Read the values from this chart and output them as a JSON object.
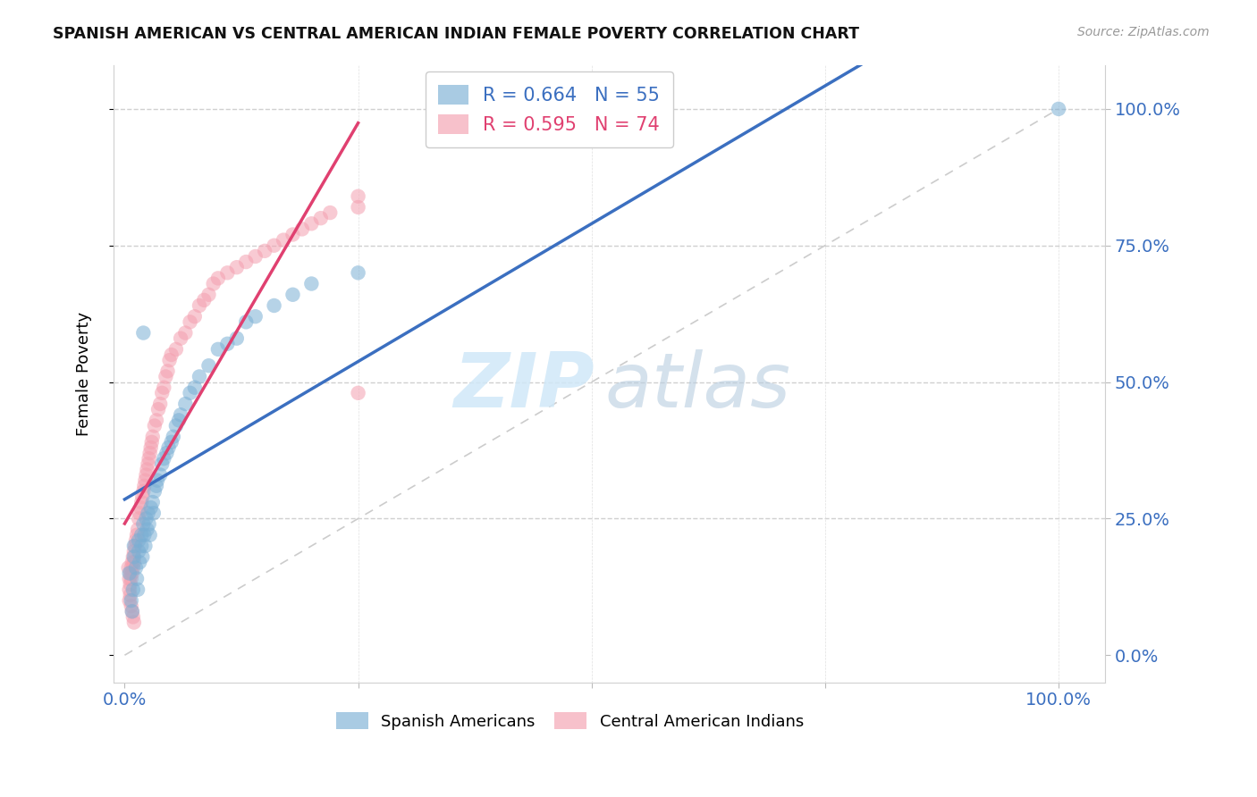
{
  "title": "SPANISH AMERICAN VS CENTRAL AMERICAN INDIAN FEMALE POVERTY CORRELATION CHART",
  "source": "Source: ZipAtlas.com",
  "ylabel": "Female Poverty",
  "ytick_labels": [
    "100.0%",
    "75.0%",
    "50.0%",
    "25.0%",
    "0.0%"
  ],
  "ytick_values": [
    1.0,
    0.75,
    0.5,
    0.25,
    0.0
  ],
  "xtick_labels": [
    "0.0%",
    "100.0%"
  ],
  "xtick_values": [
    0.0,
    1.0
  ],
  "legend_r_labels": [
    "R = 0.664   N = 55",
    "R = 0.595   N = 74"
  ],
  "legend_bottom_labels": [
    "Spanish Americans",
    "Central American Indians"
  ],
  "blue_color": "#7BAFD4",
  "pink_color": "#F4A0B0",
  "blue_line_color": "#3B6FC0",
  "pink_line_color": "#E04070",
  "diagonal_color": "#CCCCCC",
  "label_color": "#3B6FC0",
  "background_color": "#FFFFFF",
  "blue_scatter_x": [
    0.005,
    0.007,
    0.008,
    0.009,
    0.01,
    0.01,
    0.012,
    0.013,
    0.014,
    0.015,
    0.015,
    0.016,
    0.018,
    0.018,
    0.019,
    0.02,
    0.021,
    0.022,
    0.023,
    0.024,
    0.025,
    0.026,
    0.027,
    0.028,
    0.03,
    0.031,
    0.032,
    0.034,
    0.035,
    0.038,
    0.04,
    0.042,
    0.045,
    0.047,
    0.05,
    0.052,
    0.055,
    0.058,
    0.06,
    0.065,
    0.07,
    0.075,
    0.08,
    0.09,
    0.1,
    0.11,
    0.12,
    0.13,
    0.14,
    0.16,
    0.18,
    0.2,
    0.25,
    0.02,
    1.0
  ],
  "blue_scatter_y": [
    0.15,
    0.1,
    0.08,
    0.12,
    0.18,
    0.2,
    0.16,
    0.14,
    0.12,
    0.19,
    0.21,
    0.17,
    0.22,
    0.2,
    0.18,
    0.24,
    0.22,
    0.2,
    0.25,
    0.23,
    0.26,
    0.24,
    0.22,
    0.27,
    0.28,
    0.26,
    0.3,
    0.31,
    0.32,
    0.33,
    0.35,
    0.36,
    0.37,
    0.38,
    0.39,
    0.4,
    0.42,
    0.43,
    0.44,
    0.46,
    0.48,
    0.49,
    0.51,
    0.53,
    0.56,
    0.57,
    0.58,
    0.61,
    0.62,
    0.64,
    0.66,
    0.68,
    0.7,
    0.59,
    1.0
  ],
  "pink_scatter_x": [
    0.004,
    0.005,
    0.005,
    0.006,
    0.006,
    0.007,
    0.007,
    0.008,
    0.008,
    0.009,
    0.009,
    0.01,
    0.01,
    0.011,
    0.012,
    0.013,
    0.014,
    0.015,
    0.016,
    0.017,
    0.018,
    0.019,
    0.02,
    0.021,
    0.022,
    0.023,
    0.024,
    0.025,
    0.026,
    0.027,
    0.028,
    0.029,
    0.03,
    0.032,
    0.034,
    0.036,
    0.038,
    0.04,
    0.042,
    0.044,
    0.046,
    0.048,
    0.05,
    0.055,
    0.06,
    0.065,
    0.07,
    0.075,
    0.08,
    0.085,
    0.09,
    0.095,
    0.1,
    0.11,
    0.12,
    0.13,
    0.14,
    0.15,
    0.16,
    0.17,
    0.18,
    0.19,
    0.2,
    0.21,
    0.22,
    0.25,
    0.005,
    0.006,
    0.007,
    0.008,
    0.009,
    0.01,
    0.25,
    0.25
  ],
  "pink_scatter_y": [
    0.16,
    0.12,
    0.14,
    0.13,
    0.15,
    0.14,
    0.16,
    0.15,
    0.17,
    0.16,
    0.18,
    0.17,
    0.19,
    0.2,
    0.21,
    0.22,
    0.23,
    0.25,
    0.26,
    0.27,
    0.28,
    0.29,
    0.3,
    0.31,
    0.32,
    0.33,
    0.34,
    0.35,
    0.36,
    0.37,
    0.38,
    0.39,
    0.4,
    0.42,
    0.43,
    0.45,
    0.46,
    0.48,
    0.49,
    0.51,
    0.52,
    0.54,
    0.55,
    0.56,
    0.58,
    0.59,
    0.61,
    0.62,
    0.64,
    0.65,
    0.66,
    0.68,
    0.69,
    0.7,
    0.71,
    0.72,
    0.73,
    0.74,
    0.75,
    0.76,
    0.77,
    0.78,
    0.79,
    0.8,
    0.81,
    0.82,
    0.1,
    0.11,
    0.09,
    0.08,
    0.07,
    0.06,
    0.84,
    0.48
  ]
}
